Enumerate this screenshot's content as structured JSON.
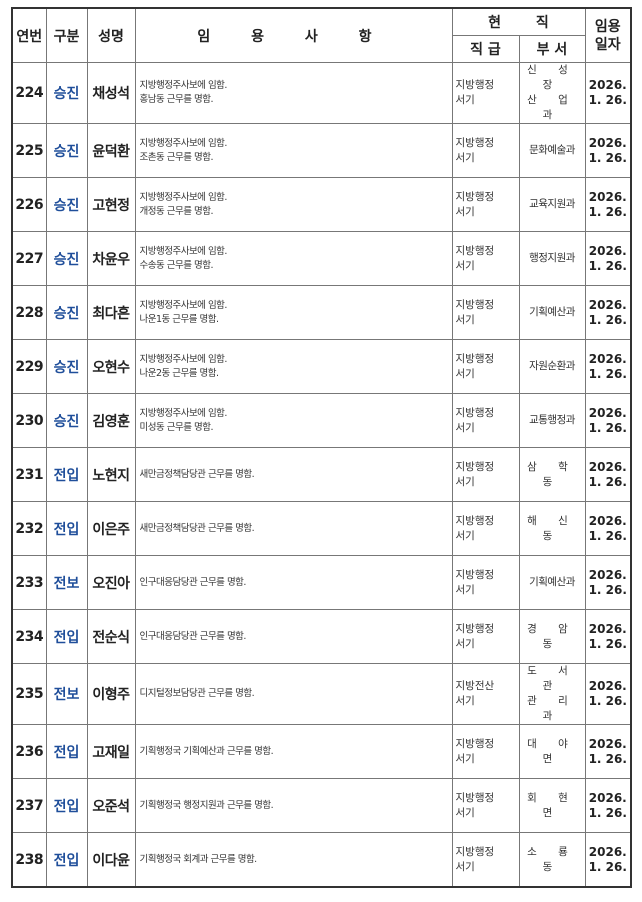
{
  "header": {
    "no": "연번",
    "type": "구분",
    "name": "성명",
    "details": "임 용 사 항",
    "current": "현   직",
    "rank": "직 급",
    "dept": "부 서",
    "date": "임용 일자"
  },
  "rows": [
    {
      "no": "224",
      "type": "승진",
      "name": "채성석",
      "desc1": "지방행정주사보에 임함.",
      "desc2": "홍남동 근무를 명함.",
      "rank1": "지방행정",
      "rank2": "서기",
      "dept1": "신 성 장",
      "dept2": "산 업 과",
      "date1": "2026.",
      "date2": "1. 26."
    },
    {
      "no": "225",
      "type": "승진",
      "name": "윤덕환",
      "desc1": "지방행정주사보에 임함.",
      "desc2": "조촌동 근무를 명함.",
      "rank1": "지방행정",
      "rank2": "서기",
      "dept1": "문화예술과",
      "dept2": "",
      "date1": "2026.",
      "date2": "1. 26."
    },
    {
      "no": "226",
      "type": "승진",
      "name": "고현정",
      "desc1": "지방행정주사보에 임함.",
      "desc2": "개정동 근무를 명함.",
      "rank1": "지방행정",
      "rank2": "서기",
      "dept1": "교육지원과",
      "dept2": "",
      "date1": "2026.",
      "date2": "1. 26."
    },
    {
      "no": "227",
      "type": "승진",
      "name": "차윤우",
      "desc1": "지방행정주사보에 임함.",
      "desc2": "수송동 근무를 명함.",
      "rank1": "지방행정",
      "rank2": "서기",
      "dept1": "행정지원과",
      "dept2": "",
      "date1": "2026.",
      "date2": "1. 26."
    },
    {
      "no": "228",
      "type": "승진",
      "name": "최다흔",
      "desc1": "지방행정주사보에 임함.",
      "desc2": "나운1동 근무를 명함.",
      "rank1": "지방행정",
      "rank2": "서기",
      "dept1": "기획예산과",
      "dept2": "",
      "date1": "2026.",
      "date2": "1. 26."
    },
    {
      "no": "229",
      "type": "승진",
      "name": "오현수",
      "desc1": "지방행정주사보에 임함.",
      "desc2": "나운2동 근무를 명함.",
      "rank1": "지방행정",
      "rank2": "서기",
      "dept1": "자원순환과",
      "dept2": "",
      "date1": "2026.",
      "date2": "1. 26."
    },
    {
      "no": "230",
      "type": "승진",
      "name": "김영훈",
      "desc1": "지방행정주사보에 임함.",
      "desc2": "미성동 근무를 명함.",
      "rank1": "지방행정",
      "rank2": "서기",
      "dept1": "교통행정과",
      "dept2": "",
      "date1": "2026.",
      "date2": "1. 26."
    },
    {
      "no": "231",
      "type": "전입",
      "name": "노현지",
      "desc1": "새만금정책담당관 근무를 명함.",
      "desc2": "",
      "rank1": "지방행정",
      "rank2": "서기",
      "dept1": "삼 학 동",
      "dept2": "",
      "date1": "2026.",
      "date2": "1. 26."
    },
    {
      "no": "232",
      "type": "전입",
      "name": "이은주",
      "desc1": "새만금정책담당관 근무를 명함.",
      "desc2": "",
      "rank1": "지방행정",
      "rank2": "서기",
      "dept1": "해 신 동",
      "dept2": "",
      "date1": "2026.",
      "date2": "1. 26."
    },
    {
      "no": "233",
      "type": "전보",
      "name": "오진아",
      "desc1": "인구대응담당관 근무를 명함.",
      "desc2": "",
      "rank1": "지방행정",
      "rank2": "서기",
      "dept1": "기획예산과",
      "dept2": "",
      "date1": "2026.",
      "date2": "1. 26."
    },
    {
      "no": "234",
      "type": "전입",
      "name": "전순식",
      "desc1": "인구대응담당관 근무를 명함.",
      "desc2": "",
      "rank1": "지방행정",
      "rank2": "서기",
      "dept1": "경 암 동",
      "dept2": "",
      "date1": "2026.",
      "date2": "1. 26."
    },
    {
      "no": "235",
      "type": "전보",
      "name": "이형주",
      "desc1": "디지털정보담당관 근무를 명함.",
      "desc2": "",
      "rank1": "지방전산",
      "rank2": "서기",
      "dept1": "도 서 관",
      "dept2": "관 리 과",
      "date1": "2026.",
      "date2": "1. 26."
    },
    {
      "no": "236",
      "type": "전입",
      "name": "고재일",
      "desc1": "기획행정국 기획예산과 근무를 명함.",
      "desc2": "",
      "rank1": "지방행정",
      "rank2": "서기",
      "dept1": "대 야 면",
      "dept2": "",
      "date1": "2026.",
      "date2": "1. 26."
    },
    {
      "no": "237",
      "type": "전입",
      "name": "오준석",
      "desc1": "기획행정국 행정지원과 근무를 명함.",
      "desc2": "",
      "rank1": "지방행정",
      "rank2": "서기",
      "dept1": "회 현 면",
      "dept2": "",
      "date1": "2026.",
      "date2": "1. 26."
    },
    {
      "no": "238",
      "type": "전입",
      "name": "이다윤",
      "desc1": "기획행정국 회계과 근무를 명함.",
      "desc2": "",
      "rank1": "지방행정",
      "rank2": "서기",
      "dept1": "소 룡 동",
      "dept2": "",
      "date1": "2026.",
      "date2": "1. 26."
    }
  ]
}
